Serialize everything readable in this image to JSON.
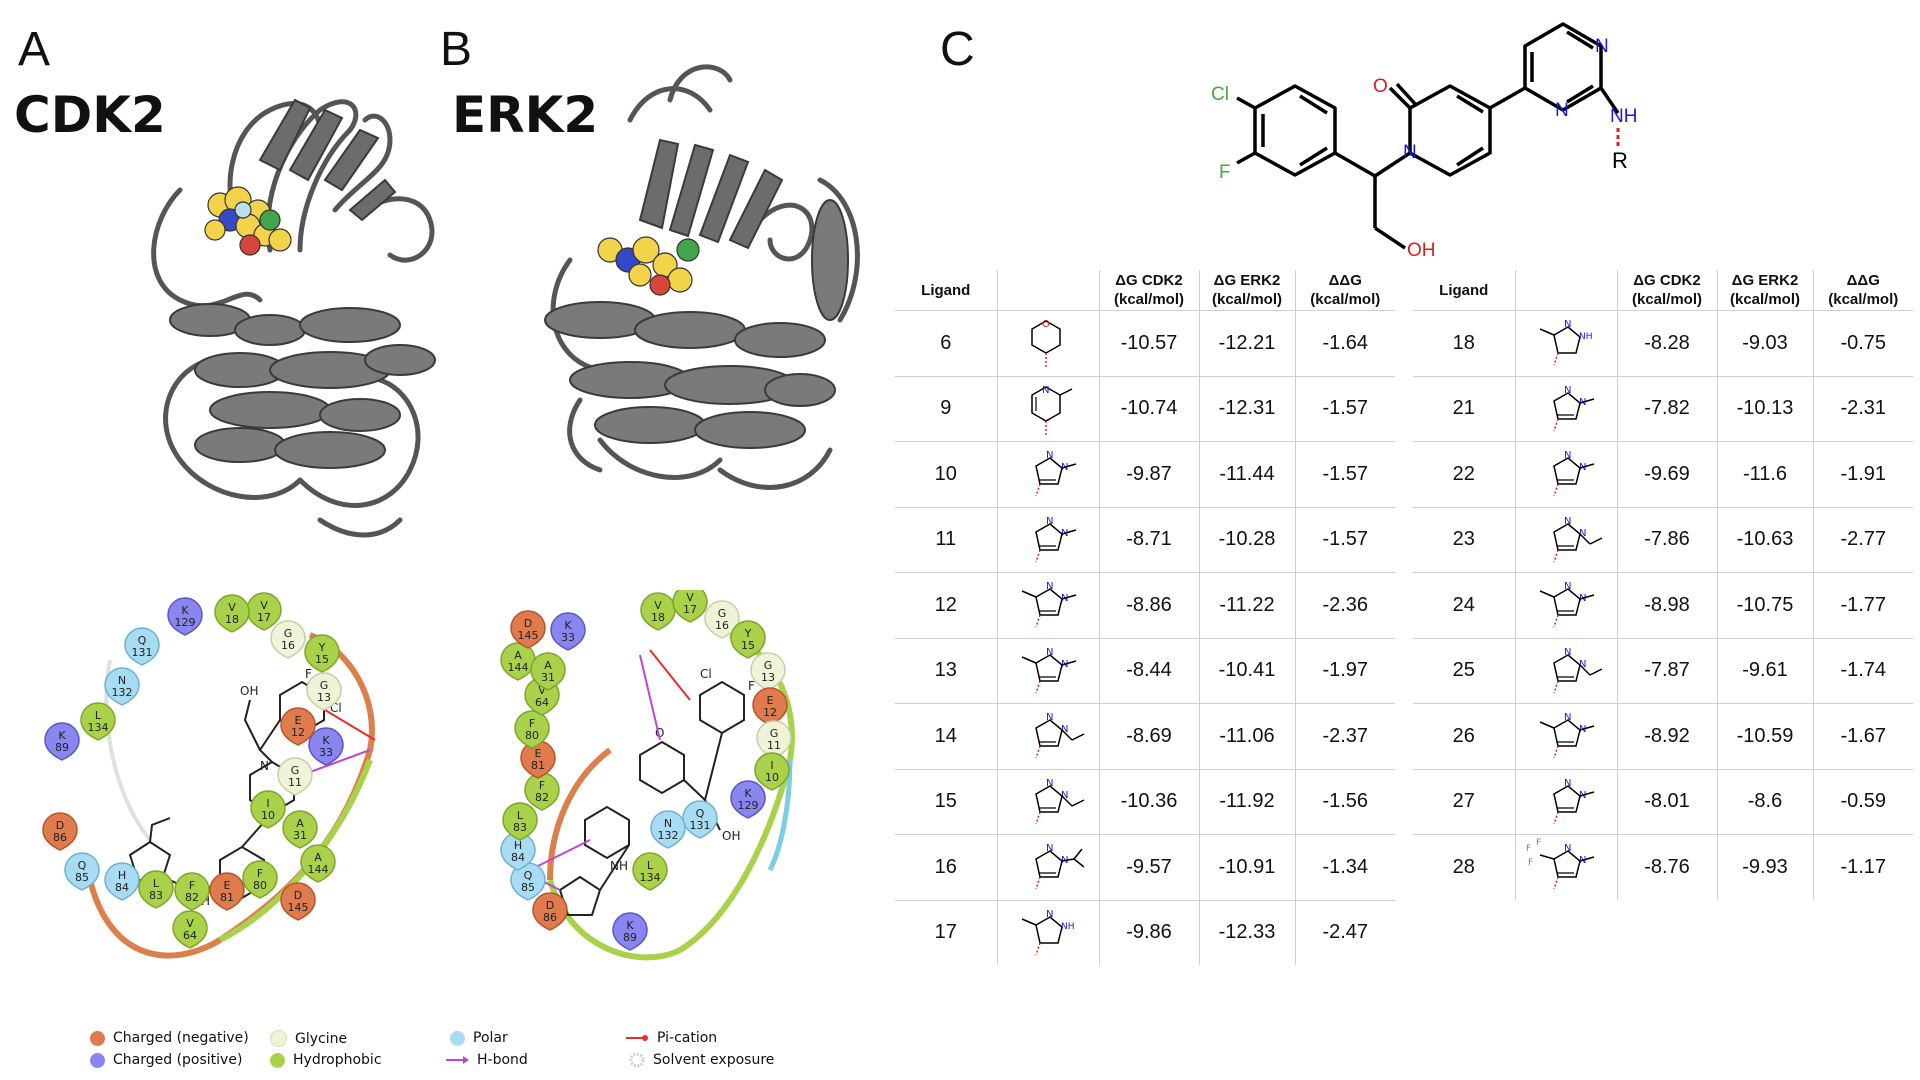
{
  "panels": {
    "a": {
      "letter": "A",
      "protein": "CDK2"
    },
    "b": {
      "letter": "B",
      "protein": "ERK2"
    },
    "c": {
      "letter": "C"
    }
  },
  "scaffold": {
    "cl": "Cl",
    "f": "F",
    "o": "O",
    "n": "N",
    "oh": "OH",
    "nh": "NH",
    "r": "R"
  },
  "residues_cdk2": {
    "k129": [
      "K",
      "129"
    ],
    "q131": [
      "Q",
      "131"
    ],
    "n132": [
      "N",
      "132"
    ],
    "l134": [
      "L",
      "134"
    ],
    "k89": [
      "K",
      "89"
    ],
    "d86": [
      "D",
      "86"
    ],
    "q85": [
      "Q",
      "85"
    ],
    "h84": [
      "H",
      "84"
    ],
    "l83": [
      "L",
      "83"
    ],
    "f82": [
      "F",
      "82"
    ],
    "e81": [
      "E",
      "81"
    ],
    "f80": [
      "F",
      "80"
    ],
    "v64": [
      "V",
      "64"
    ],
    "d145": [
      "D",
      "145"
    ],
    "a144": [
      "A",
      "144"
    ],
    "a31": [
      "A",
      "31"
    ],
    "i10": [
      "I",
      "10"
    ],
    "g11": [
      "G",
      "11"
    ],
    "k33": [
      "K",
      "33"
    ],
    "e12": [
      "E",
      "12"
    ],
    "g13": [
      "G",
      "13"
    ],
    "y15": [
      "Y",
      "15"
    ],
    "g16": [
      "G",
      "16"
    ],
    "v17": [
      "V",
      "17"
    ],
    "v18": [
      "V",
      "18"
    ]
  },
  "residues_erk2": {
    "v18": [
      "V",
      "18"
    ],
    "v17": [
      "V",
      "17"
    ],
    "g16": [
      "G",
      "16"
    ],
    "y15": [
      "Y",
      "15"
    ],
    "g13": [
      "G",
      "13"
    ],
    "e12": [
      "E",
      "12"
    ],
    "g11": [
      "G",
      "11"
    ],
    "i10": [
      "I",
      "10"
    ],
    "k129": [
      "K",
      "129"
    ],
    "q131": [
      "Q",
      "131"
    ],
    "n132": [
      "N",
      "132"
    ],
    "l134": [
      "L",
      "134"
    ],
    "k89": [
      "K",
      "89"
    ],
    "d86": [
      "D",
      "86"
    ],
    "q85": [
      "Q",
      "85"
    ],
    "h84": [
      "H",
      "84"
    ],
    "l83": [
      "L",
      "83"
    ],
    "f82": [
      "F",
      "82"
    ],
    "e81": [
      "E",
      "81"
    ],
    "f80": [
      "F",
      "80"
    ],
    "v64": [
      "V",
      "64"
    ],
    "a144": [
      "A",
      "144"
    ],
    "a31": [
      "A",
      "31"
    ],
    "d145": [
      "D",
      "145"
    ],
    "k33": [
      "K",
      "33"
    ]
  },
  "legend": [
    {
      "label": "Charged (negative)",
      "color": "#e07b4e",
      "kind": "dot"
    },
    {
      "label": "Charged (positive)",
      "color": "#8a86ef",
      "kind": "dot"
    },
    {
      "label": "Glycine",
      "color": "#f1f3d8",
      "kind": "dot"
    },
    {
      "label": "Hydrophobic",
      "color": "#a9d24a",
      "kind": "dot"
    },
    {
      "label": "Polar",
      "color": "#a8dcf2",
      "kind": "dot"
    },
    {
      "label": "H-bond",
      "color": "#c044d8",
      "kind": "arrow"
    },
    {
      "label": "Pi-cation",
      "color": "#e03030",
      "kind": "line"
    },
    {
      "label": "Solvent exposure",
      "color": "#d0d0d0",
      "kind": "ring"
    }
  ],
  "table": {
    "headers": {
      "ligand": "Ligand",
      "dg_cdk2": [
        "ΔG CDK2",
        "(kcal/mol)"
      ],
      "dg_erk2": [
        "ΔG ERK2",
        "(kcal/mol)"
      ],
      "ddg": [
        "ΔΔG",
        "(kcal/mol)"
      ]
    },
    "left": [
      {
        "ligand": "6",
        "cdk2": "-10.57",
        "erk2": "-12.21",
        "ddg": "-1.64"
      },
      {
        "ligand": "9",
        "cdk2": "-10.74",
        "erk2": "-12.31",
        "ddg": "-1.57"
      },
      {
        "ligand": "10",
        "cdk2": "-9.87",
        "erk2": "-11.44",
        "ddg": "-1.57"
      },
      {
        "ligand": "11",
        "cdk2": "-8.71",
        "erk2": "-10.28",
        "ddg": "-1.57"
      },
      {
        "ligand": "12",
        "cdk2": "-8.86",
        "erk2": "-11.22",
        "ddg": "-2.36"
      },
      {
        "ligand": "13",
        "cdk2": "-8.44",
        "erk2": "-10.41",
        "ddg": "-1.97"
      },
      {
        "ligand": "14",
        "cdk2": "-8.69",
        "erk2": "-11.06",
        "ddg": "-2.37"
      },
      {
        "ligand": "15",
        "cdk2": "-10.36",
        "erk2": "-11.92",
        "ddg": "-1.56"
      },
      {
        "ligand": "16",
        "cdk2": "-9.57",
        "erk2": "-10.91",
        "ddg": "-1.34"
      },
      {
        "ligand": "17",
        "cdk2": "-9.86",
        "erk2": "-12.33",
        "ddg": "-2.47"
      }
    ],
    "right": [
      {
        "ligand": "18",
        "cdk2": "-8.28",
        "erk2": "-9.03",
        "ddg": "-0.75"
      },
      {
        "ligand": "21",
        "cdk2": "-7.82",
        "erk2": "-10.13",
        "ddg": "-2.31"
      },
      {
        "ligand": "22",
        "cdk2": "-9.69",
        "erk2": "-11.6",
        "ddg": "-1.91"
      },
      {
        "ligand": "23",
        "cdk2": "-7.86",
        "erk2": "-10.63",
        "ddg": "-2.77"
      },
      {
        "ligand": "24",
        "cdk2": "-8.98",
        "erk2": "-10.75",
        "ddg": "-1.77"
      },
      {
        "ligand": "25",
        "cdk2": "-7.87",
        "erk2": "-9.61",
        "ddg": "-1.74"
      },
      {
        "ligand": "26",
        "cdk2": "-8.92",
        "erk2": "-10.59",
        "ddg": "-1.67"
      },
      {
        "ligand": "27",
        "cdk2": "-8.01",
        "erk2": "-8.6",
        "ddg": "-0.59"
      },
      {
        "ligand": "28",
        "cdk2": "-8.76",
        "erk2": "-9.93",
        "ddg": "-1.17"
      }
    ]
  },
  "frag_text": {
    "n": "N",
    "nh": "NH",
    "o": "O",
    "f": "F"
  }
}
